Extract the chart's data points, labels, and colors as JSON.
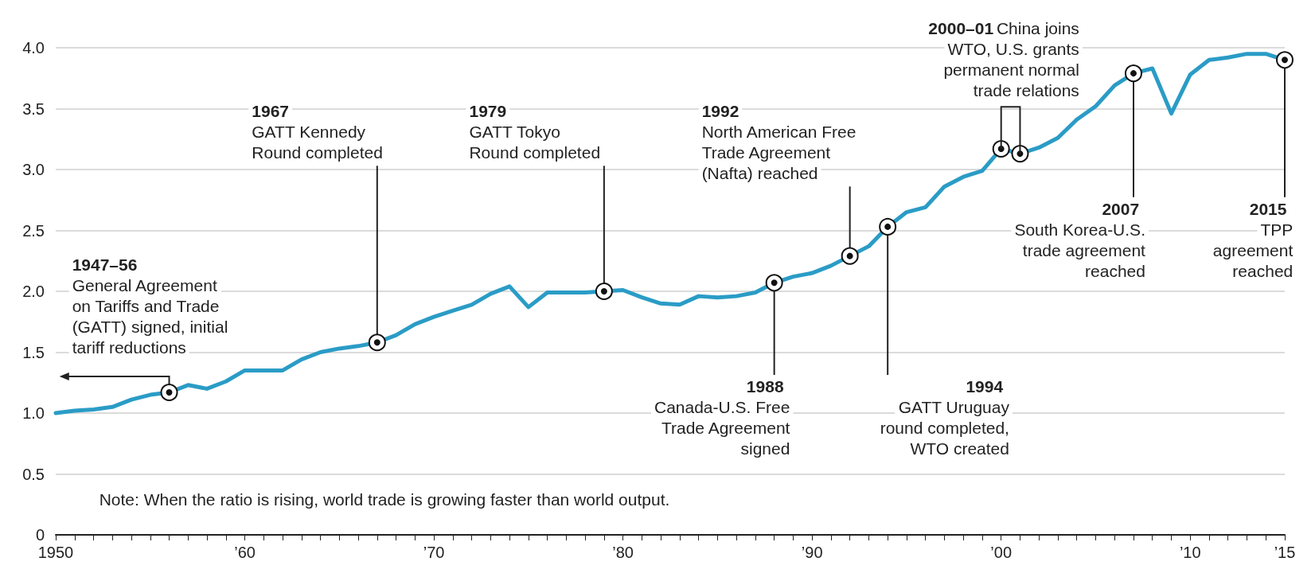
{
  "chart_data": {
    "type": "line",
    "x": [
      1950,
      1951,
      1952,
      1953,
      1954,
      1955,
      1956,
      1957,
      1958,
      1959,
      1960,
      1961,
      1962,
      1963,
      1964,
      1965,
      1966,
      1967,
      1968,
      1969,
      1970,
      1971,
      1972,
      1973,
      1974,
      1975,
      1976,
      1977,
      1978,
      1979,
      1980,
      1981,
      1982,
      1983,
      1984,
      1985,
      1986,
      1987,
      1988,
      1989,
      1990,
      1991,
      1992,
      1993,
      1994,
      1995,
      1996,
      1997,
      1998,
      1999,
      2000,
      2001,
      2002,
      2003,
      2004,
      2005,
      2006,
      2007,
      2008,
      2009,
      2010,
      2011,
      2012,
      2013,
      2014,
      2015
    ],
    "values": [
      1.0,
      1.02,
      1.03,
      1.05,
      1.11,
      1.15,
      1.17,
      1.23,
      1.2,
      1.26,
      1.35,
      1.35,
      1.35,
      1.44,
      1.5,
      1.53,
      1.55,
      1.58,
      1.64,
      1.73,
      1.79,
      1.84,
      1.89,
      1.98,
      2.04,
      1.87,
      1.99,
      1.99,
      1.99,
      2.0,
      2.01,
      1.95,
      1.9,
      1.89,
      1.96,
      1.95,
      1.96,
      1.99,
      2.07,
      2.12,
      2.15,
      2.21,
      2.29,
      2.37,
      2.53,
      2.65,
      2.69,
      2.86,
      2.94,
      2.99,
      3.17,
      3.13,
      3.18,
      3.26,
      3.41,
      3.52,
      3.69,
      3.79,
      3.83,
      3.46,
      3.78,
      3.9,
      3.92,
      3.95,
      3.95,
      3.9
    ],
    "color": "#2a9cc6",
    "marker": "none",
    "line_style": "solid",
    "grid": "y",
    "xlim": [
      1950,
      2015
    ],
    "xticks": [
      {
        "value": 1950,
        "label": "1950"
      },
      {
        "value": 1951,
        "label": null
      },
      {
        "value": 1952,
        "label": null
      },
      {
        "value": 1953,
        "label": null
      },
      {
        "value": 1954,
        "label": null
      },
      {
        "value": 1955,
        "label": null
      },
      {
        "value": 1956,
        "label": null
      },
      {
        "value": 1957,
        "label": null
      },
      {
        "value": 1958,
        "label": null
      },
      {
        "value": 1959,
        "label": null
      },
      {
        "value": 1960,
        "label": "’60"
      },
      {
        "value": 1961,
        "label": null
      },
      {
        "value": 1962,
        "label": null
      },
      {
        "value": 1963,
        "label": null
      },
      {
        "value": 1964,
        "label": null
      },
      {
        "value": 1965,
        "label": null
      },
      {
        "value": 1966,
        "label": null
      },
      {
        "value": 1967,
        "label": null
      },
      {
        "value": 1968,
        "label": null
      },
      {
        "value": 1969,
        "label": null
      },
      {
        "value": 1970,
        "label": "’70"
      },
      {
        "value": 1971,
        "label": null
      },
      {
        "value": 1972,
        "label": null
      },
      {
        "value": 1973,
        "label": null
      },
      {
        "value": 1974,
        "label": null
      },
      {
        "value": 1975,
        "label": null
      },
      {
        "value": 1976,
        "label": null
      },
      {
        "value": 1977,
        "label": null
      },
      {
        "value": 1978,
        "label": null
      },
      {
        "value": 1979,
        "label": null
      },
      {
        "value": 1980,
        "label": "’80"
      },
      {
        "value": 1981,
        "label": null
      },
      {
        "value": 1982,
        "label": null
      },
      {
        "value": 1983,
        "label": null
      },
      {
        "value": 1984,
        "label": null
      },
      {
        "value": 1985,
        "label": null
      },
      {
        "value": 1986,
        "label": null
      },
      {
        "value": 1987,
        "label": null
      },
      {
        "value": 1988,
        "label": null
      },
      {
        "value": 1989,
        "label": null
      },
      {
        "value": 1990,
        "label": "’90"
      },
      {
        "value": 1991,
        "label": null
      },
      {
        "value": 1992,
        "label": null
      },
      {
        "value": 1993,
        "label": null
      },
      {
        "value": 1994,
        "label": null
      },
      {
        "value": 1995,
        "label": null
      },
      {
        "value": 1996,
        "label": null
      },
      {
        "value": 1997,
        "label": null
      },
      {
        "value": 1998,
        "label": null
      },
      {
        "value": 1999,
        "label": null
      },
      {
        "value": 2000,
        "label": "’00"
      },
      {
        "value": 2001,
        "label": null
      },
      {
        "value": 2002,
        "label": null
      },
      {
        "value": 2003,
        "label": null
      },
      {
        "value": 2004,
        "label": null
      },
      {
        "value": 2005,
        "label": null
      },
      {
        "value": 2006,
        "label": null
      },
      {
        "value": 2007,
        "label": null
      },
      {
        "value": 2008,
        "label": null
      },
      {
        "value": 2009,
        "label": null
      },
      {
        "value": 2010,
        "label": "’10"
      },
      {
        "value": 2011,
        "label": null
      },
      {
        "value": 2012,
        "label": null
      },
      {
        "value": 2013,
        "label": null
      },
      {
        "value": 2014,
        "label": null
      },
      {
        "value": 2015,
        "label": "’15"
      }
    ],
    "ylim": [
      0,
      4
    ],
    "yticks": [
      0,
      0.5,
      {
        "value": 1,
        "label": "1.0"
      },
      1.5,
      {
        "value": 2,
        "label": "2.0"
      },
      2.5,
      {
        "value": 3,
        "label": "3.0"
      },
      3.5,
      {
        "value": 4,
        "label": "4.0"
      }
    ],
    "annotations": [
      {
        "text": "1947–56\nGeneral Agreement\non Tariffs and Trade\n(GATT) signed, initial\ntariff reductions",
        "x": 1956,
        "y": 1.17
      },
      {
        "text": "1967\nGATT Kennedy\nRound completed",
        "x": 1967,
        "y": 1.58
      },
      {
        "text": "1979\nGATT Tokyo\nRound completed",
        "x": 1979,
        "y": 2.0
      },
      {
        "text": "1988\nCanada-U.S. Free\nTrade Agreement\nsigned",
        "x": 1988,
        "y": 2.07
      },
      {
        "text": "1992\nNorth American Free\nTrade Agreement\n(Nafta) reached",
        "x": 1992,
        "y": 2.29
      },
      {
        "text": "1994\nGATT Uruguay\nround completed,\nWTO created",
        "x": 1994,
        "y": 2.53
      },
      {
        "text": "2000–01 China joins\nWTO, U.S. grants\npermanent normal\ntrade relations",
        "x": 2000,
        "y": 3.17
      },
      {
        "text": "2007\nSouth Korea-U.S.\ntrade agreement\nreached",
        "x": 2007,
        "y": 3.79
      },
      {
        "text": "2015\nTPP\nagreement\nreached",
        "x": 2015,
        "y": 3.9
      },
      "Note: When the ratio is rising, world trade is growing faster than world output."
    ]
  }
}
